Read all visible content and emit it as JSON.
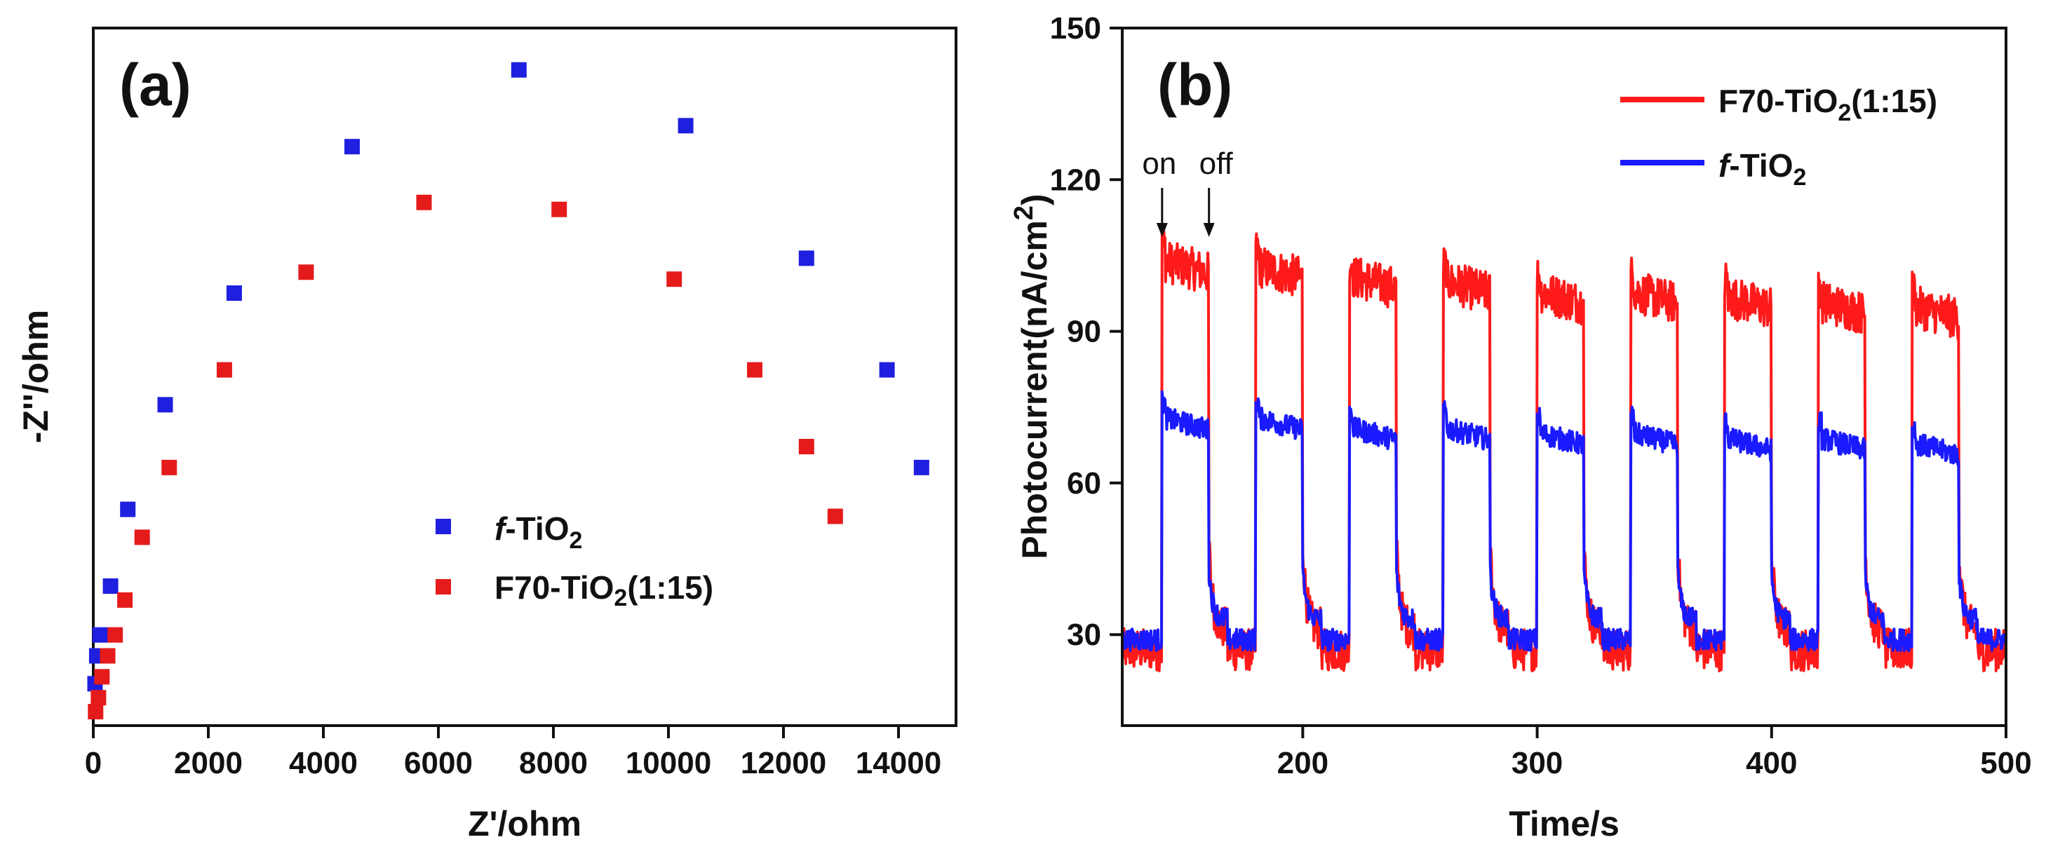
{
  "chart_data": [
    {
      "type": "scatter",
      "panel_label": "(a)",
      "xlabel": "Z'/ohm",
      "ylabel": "-Z''/ohm",
      "xlim": [
        0,
        15000
      ],
      "ylim": [
        0,
        1
      ],
      "x_ticks": [
        "0",
        "2000",
        "4000",
        "6000",
        "8000",
        "10000",
        "12000",
        "14000"
      ],
      "y_ticks_shown": false,
      "legend_position": "center",
      "series": [
        {
          "name": "f-TiO2",
          "name_italic_part": "f",
          "name_rest": "-TiO",
          "name_sub": "2",
          "name_tail": "",
          "color": "#1f1fe0",
          "points": [
            [
              30,
              0.06
            ],
            [
              60,
              0.1
            ],
            [
              120,
              0.13
            ],
            [
              300,
              0.2
            ],
            [
              600,
              0.31
            ],
            [
              1250,
              0.46
            ],
            [
              2450,
              0.62
            ],
            [
              4500,
              0.83
            ],
            [
              7400,
              0.94
            ],
            [
              10300,
              0.86
            ],
            [
              12400,
              0.67
            ],
            [
              13800,
              0.51
            ],
            [
              14400,
              0.37
            ]
          ]
        },
        {
          "name": "F70-TiO2(1:15)",
          "name_italic_part": "",
          "name_rest": "F70-TiO",
          "name_sub": "2",
          "name_tail": "(1:15)",
          "color": "#e51b1b",
          "points": [
            [
              40,
              0.02
            ],
            [
              90,
              0.04
            ],
            [
              150,
              0.07
            ],
            [
              250,
              0.1
            ],
            [
              380,
              0.13
            ],
            [
              550,
              0.18
            ],
            [
              850,
              0.27
            ],
            [
              1320,
              0.37
            ],
            [
              2280,
              0.51
            ],
            [
              3700,
              0.65
            ],
            [
              5750,
              0.75
            ],
            [
              8100,
              0.74
            ],
            [
              10100,
              0.64
            ],
            [
              11500,
              0.51
            ],
            [
              12400,
              0.4
            ],
            [
              12900,
              0.3
            ]
          ]
        }
      ]
    },
    {
      "type": "line",
      "panel_label": "(b)",
      "xlabel": "Time/s",
      "ylabel": "Photocurrent(nA/cm²)",
      "ylabel_main": "Photocurrent(nA/cm",
      "ylabel_sup": "2",
      "ylabel_close": ")",
      "xlim": [
        123,
        500
      ],
      "ylim": [
        12,
        150
      ],
      "x_ticks": [
        200,
        300,
        400,
        500
      ],
      "y_ticks": [
        30,
        60,
        90,
        120,
        150
      ],
      "light_on_times": [
        140,
        180,
        220,
        260,
        300,
        340,
        380,
        420,
        460
      ],
      "light_period_s": 40,
      "light_on_duration_s": 20,
      "annotations": [
        {
          "text": "on",
          "x": 140
        },
        {
          "text": "off",
          "x": 160
        }
      ],
      "legend_position": "top-right",
      "series": [
        {
          "name": "F70-TiO2(1:15)",
          "name_italic_part": "",
          "name_rest": "F70-TiO",
          "name_sub": "2",
          "name_tail": "(1:15)",
          "color": "#ff1a1a",
          "on_levels": [
            104,
            103,
            101,
            100,
            98,
            98,
            97,
            96,
            95
          ],
          "off_level": 27
        },
        {
          "name": "f-TiO2",
          "name_italic_part": "f",
          "name_rest": "-TiO",
          "name_sub": "2",
          "name_tail": "",
          "color": "#1a1aff",
          "on_levels": [
            73,
            73,
            71,
            71,
            70,
            70,
            69,
            69,
            68
          ],
          "off_level": 29
        }
      ]
    }
  ]
}
